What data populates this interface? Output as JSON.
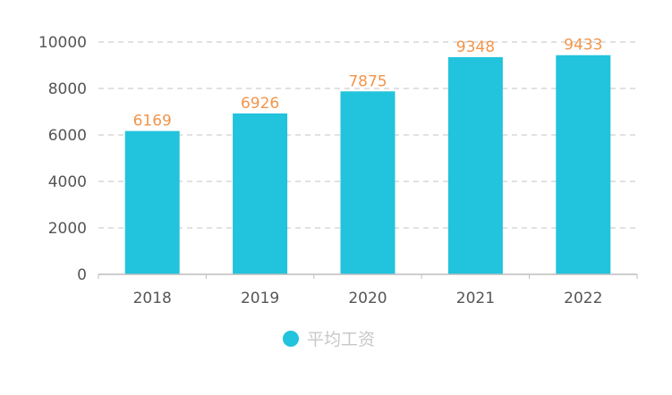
{
  "chart_data": {
    "type": "bar",
    "categories": [
      "2018",
      "2019",
      "2020",
      "2021",
      "2022"
    ],
    "series": [
      {
        "name": "平均工资",
        "values": [
          6169,
          6926,
          7875,
          9348,
          9433
        ]
      }
    ],
    "y_ticks": [
      0,
      2000,
      4000,
      6000,
      8000,
      10000
    ],
    "ylim": [
      0,
      10000
    ],
    "grid": "horizontal dashed",
    "legend": "bottom-center",
    "data_labels": true,
    "colors": {
      "bar": "#22c3dc",
      "data_label": "#f2954b",
      "legend_text": "#c8c8c8",
      "grid": "#cfcfcf",
      "axis": "#bdbdbd"
    }
  }
}
